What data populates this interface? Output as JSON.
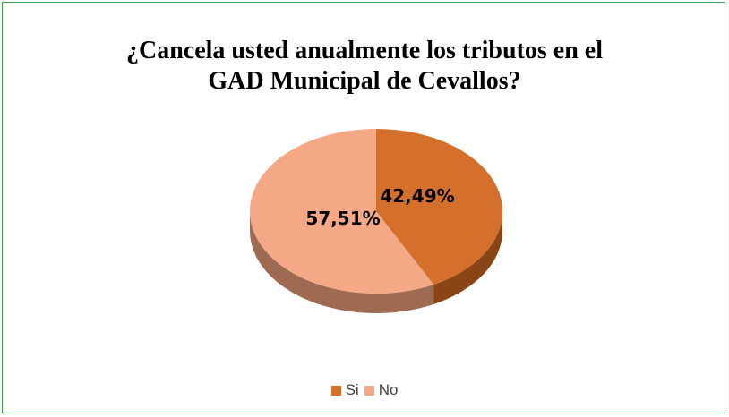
{
  "chart_data": {
    "type": "pie",
    "title": "¿Cancela usted anualmente los tributos  en el\nGAD Municipal de Cevallos?",
    "categories": [
      "Si",
      "No"
    ],
    "values": [
      42.49,
      57.51
    ],
    "labels": [
      "42,49%",
      "57,51%"
    ],
    "colors": [
      "#d4702c",
      "#f4a886"
    ],
    "side_colors": [
      "#8a4516",
      "#9e6a52"
    ],
    "legend_position": "bottom",
    "style": "3d"
  }
}
